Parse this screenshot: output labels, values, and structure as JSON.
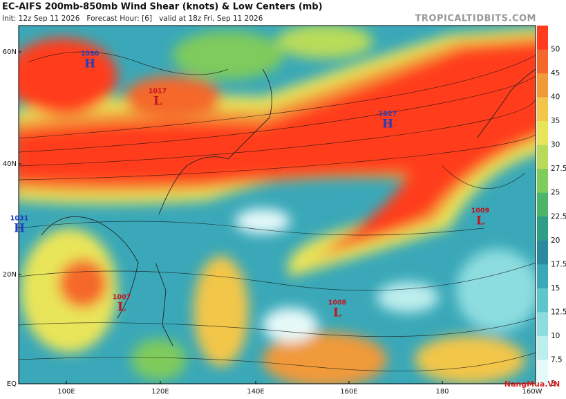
{
  "header": {
    "title": "EC-AIFS 200mb-850mb Wind Shear (knots) & Low Centers (mb)",
    "subtitle": "Init: 12z Sep 11 2026   Forecast Hour: [6]   valid at 18z Fri, Sep 11 2026",
    "site": "TROPICALTIDBITS.COM"
  },
  "lat_labels": [
    "60N",
    "40N",
    "20N",
    "EQ"
  ],
  "lon_labels": [
    "100E",
    "120E",
    "140E",
    "160E",
    "180",
    "160W"
  ],
  "centers": [
    {
      "symbol": "H",
      "label": "1030",
      "color": "#1f3fbf"
    },
    {
      "symbol": "L",
      "label": "1017",
      "color": "#c0141e"
    },
    {
      "symbol": "H",
      "label": "1027",
      "color": "#1f3fbf"
    },
    {
      "symbol": "H",
      "label": "1031",
      "color": "#1f3fbf"
    },
    {
      "symbol": "L",
      "label": "1007",
      "color": "#c0141e"
    },
    {
      "symbol": "L",
      "label": "1008",
      "color": "#c0141e"
    },
    {
      "symbol": "L",
      "label": "1009",
      "color": "#c0141e"
    }
  ],
  "colorbar": {
    "labels": [
      "50",
      "45",
      "40",
      "35",
      "30",
      "27.5",
      "25",
      "22.5",
      "20",
      "17.5",
      "15",
      "12.5",
      "10",
      "7.5",
      "5"
    ],
    "colors": [
      "#ff3c1e",
      "#f5682c",
      "#f09a3a",
      "#f2c64a",
      "#e9e55a",
      "#b8dc5a",
      "#7fcb5c",
      "#4db56a",
      "#2e9e86",
      "#2a8a9e",
      "#3aa8b8",
      "#5cc6cc",
      "#8ddde0",
      "#bdeeee",
      "#e6f9f9"
    ]
  },
  "watermark": "NangMua.VN"
}
